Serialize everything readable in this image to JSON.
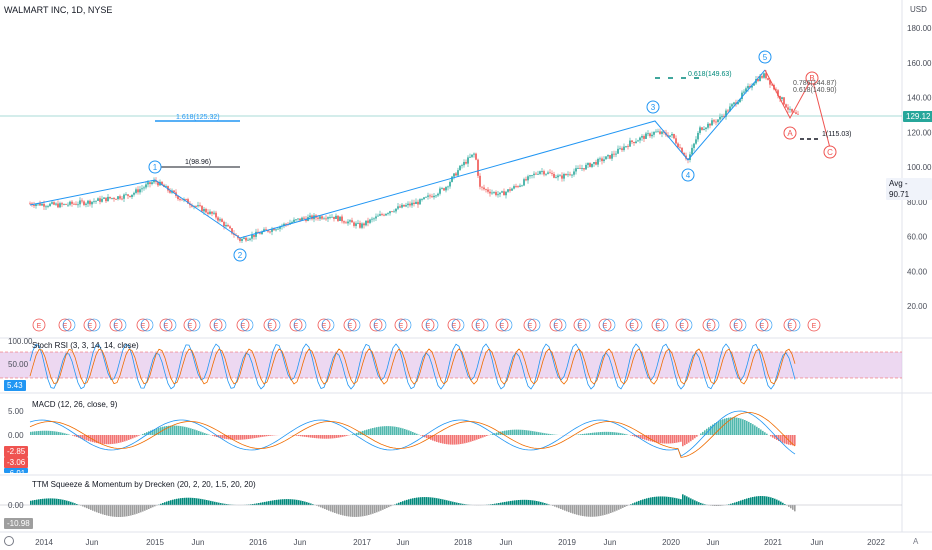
{
  "chart": {
    "symbol_label": "WALMART INC, 1D, NYSE",
    "currency": "USD",
    "last_price": "129.12",
    "avg_label": "Avg",
    "avg_value": "90.71",
    "price_ticks": [
      "180.00",
      "160.00",
      "140.00",
      "120.00",
      "100.00",
      "80.00",
      "60.00",
      "40.00",
      "20.00"
    ],
    "time_labels": [
      "2014",
      "Jun",
      "2015",
      "Jun",
      "2016",
      "Jun",
      "2017",
      "Jun",
      "2018",
      "Jun",
      "2019",
      "Jun",
      "2020",
      "Jun",
      "2021",
      "Jun",
      "2022"
    ],
    "colors": {
      "up": "#26a69a",
      "down": "#ef5350",
      "wave": "#2196f3",
      "fib": "#2196f3",
      "corrective": "#ef5350",
      "price_line": "#26a69a"
    }
  },
  "annotations": {
    "fib_upper": "1.618(125.32)",
    "fib_wave1": "1(98.96)",
    "fib_top": "0.618(149.63)",
    "fib_78": "0.786(144.87)",
    "fib_618": "0.618(140.90)",
    "fib_c": "1(115.03)",
    "waves": [
      "1",
      "2",
      "3",
      "4",
      "5"
    ],
    "corrective": [
      "A",
      "B",
      "C"
    ],
    "earnings_marker": "E",
    "dividend_marker": "D"
  },
  "stoch": {
    "title": "Stoch RSI (3, 3, 14, 14, close)",
    "ticks": [
      "100.00",
      "50.00"
    ],
    "value": "5.43",
    "colors": {
      "k": "#2196f3",
      "d": "#ef6c00",
      "band": "#e1bee7"
    }
  },
  "macd": {
    "title": "MACD (12, 26, close, 9)",
    "ticks": [
      "5.00",
      "0.00"
    ],
    "values": [
      "-2.85",
      "-3.06",
      "-6.91"
    ],
    "colors": {
      "macd": "#2196f3",
      "signal": "#ef6c00",
      "hist_pos": "#26a69a",
      "hist_neg": "#ef5350"
    }
  },
  "ttm": {
    "title": "TTM Squeeze & Momentum by Drecken (20, 2, 20, 1.5, 20, 20)",
    "ticks": [
      "0.00"
    ],
    "value": "-10.98",
    "colors": {
      "pos": "#00897b",
      "neg": "#9e9e9e"
    }
  },
  "footer": {
    "gear_icon": "settings",
    "log_label": "A"
  }
}
